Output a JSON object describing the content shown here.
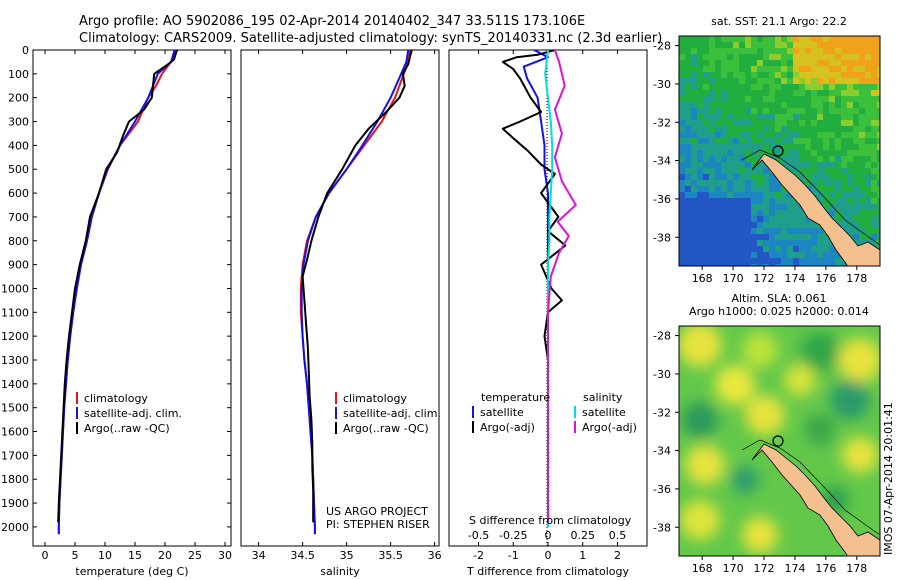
{
  "header": {
    "line1": "Argo profile: AO 5902086_195 02-Apr-2014 20140402_347 33.511S 173.106E",
    "line2": "Climatology: CARS2009. Satellite-adjusted climatology: synTS_20140331.nc (2.3d earlier)"
  },
  "colors": {
    "climatology": "#ee1111",
    "satellite": "#1111ee",
    "argo": "#000000",
    "salinity_satellite": "#00dddd",
    "salinity_argo": "#dd11dd",
    "land": "#f5c08f"
  },
  "depth_ticks": [
    "0",
    "100",
    "200",
    "300",
    "400",
    "500",
    "600",
    "700",
    "800",
    "900",
    "1000",
    "1100",
    "1200",
    "1300",
    "1400",
    "1500",
    "1600",
    "1700",
    "1800",
    "1900",
    "2000"
  ],
  "panels": {
    "temperature": {
      "xlabel": "temperature (deg C)",
      "ticks": [
        "0",
        "5",
        "10",
        "15",
        "20",
        "25",
        "30"
      ],
      "legend": [
        "climatology",
        "satellite-adj. clim.",
        "Argo(..raw -QC)"
      ]
    },
    "salinity": {
      "xlabel": "salinity",
      "ticks": [
        "34",
        "34.5",
        "35",
        "35.5",
        "36"
      ],
      "legend": [
        "climatology",
        "satellite-adj. clim.",
        "Argo(..raw -QC)"
      ],
      "credit1": "US ARGO PROJECT",
      "credit2": "PI: STEPHEN RISER"
    },
    "difference": {
      "xlabel": "T difference from climatology",
      "top_label": "S difference from climatology",
      "t_ticks": [
        "-2",
        "-1",
        "0",
        "1",
        "2"
      ],
      "s_ticks": [
        "-0.5",
        "-0.25",
        "0",
        "0.25",
        "0.5"
      ],
      "legend_temp_header": "temperature",
      "legend_sal_header": "salinity",
      "legend_temp": [
        "satellite",
        "Argo(-adj)"
      ],
      "legend_sal": [
        "satellite",
        "Argo(-adj)"
      ]
    }
  },
  "maps": {
    "sst": {
      "title": "sat. SST: 21.1  Argo: 22.2",
      "lat_ticks": [
        "-28",
        "-30",
        "-32",
        "-34",
        "-36",
        "-38"
      ],
      "lon_ticks": [
        "168",
        "170",
        "172",
        "174",
        "176",
        "178"
      ]
    },
    "sla": {
      "title1": "Altim. SLA: 0.061",
      "title2": "Argo h1000: 0.025 h2000: 0.014",
      "lat_ticks": [
        "-28",
        "-30",
        "-32",
        "-34",
        "-36",
        "-38"
      ],
      "lon_ticks": [
        "168",
        "170",
        "172",
        "174",
        "176",
        "178"
      ],
      "side_label": "IMOS 07-Apr-2014 20:01:41"
    }
  },
  "chart_data": [
    {
      "type": "line",
      "name": "temperature profile",
      "xlabel": "temperature (deg C)",
      "ylabel": "",
      "xlim": [
        -2,
        31
      ],
      "ylim": [
        2080,
        0
      ],
      "series": [
        {
          "name": "climatology",
          "color": "#ee1111",
          "points": [
            [
              22.0,
              0
            ],
            [
              21.0,
              50
            ],
            [
              19.5,
              100
            ],
            [
              18.5,
              150
            ],
            [
              17.2,
              200
            ],
            [
              15.5,
              300
            ],
            [
              12.5,
              400
            ],
            [
              10.5,
              500
            ],
            [
              9.0,
              600
            ],
            [
              7.8,
              700
            ],
            [
              7.0,
              800
            ],
            [
              6.0,
              900
            ],
            [
              5.3,
              1000
            ],
            [
              4.7,
              1100
            ],
            [
              4.2,
              1200
            ],
            [
              3.8,
              1300
            ],
            [
              3.5,
              1400
            ],
            [
              3.2,
              1500
            ],
            [
              3.0,
              1600
            ],
            [
              2.8,
              1700
            ],
            [
              2.6,
              1800
            ],
            [
              2.4,
              1900
            ],
            [
              2.3,
              2000
            ],
            [
              2.3,
              2030
            ]
          ]
        },
        {
          "name": "satellite-adj. clim.",
          "color": "#1111ee",
          "points": [
            [
              21.6,
              0
            ],
            [
              21.0,
              50
            ],
            [
              18.8,
              100
            ],
            [
              17.2,
              200
            ],
            [
              15.0,
              300
            ],
            [
              12.5,
              400
            ],
            [
              10.4,
              500
            ],
            [
              9.0,
              600
            ],
            [
              7.8,
              700
            ],
            [
              7.0,
              800
            ],
            [
              6.0,
              900
            ],
            [
              5.3,
              1000
            ],
            [
              4.7,
              1100
            ],
            [
              4.2,
              1200
            ],
            [
              3.8,
              1300
            ],
            [
              3.5,
              1400
            ],
            [
              3.2,
              1500
            ],
            [
              3.0,
              1600
            ],
            [
              2.8,
              1700
            ],
            [
              2.6,
              1800
            ],
            [
              2.4,
              1900
            ],
            [
              2.3,
              2000
            ],
            [
              2.3,
              2030
            ]
          ]
        },
        {
          "name": "Argo(..raw -QC)",
          "color": "#000000",
          "points": [
            [
              22.0,
              0
            ],
            [
              21.5,
              40
            ],
            [
              20.5,
              60
            ],
            [
              18.2,
              100
            ],
            [
              17.8,
              200
            ],
            [
              16.5,
              250
            ],
            [
              14.0,
              300
            ],
            [
              13.0,
              360
            ],
            [
              12.0,
              430
            ],
            [
              10.2,
              500
            ],
            [
              9.0,
              600
            ],
            [
              7.5,
              700
            ],
            [
              6.8,
              800
            ],
            [
              5.8,
              900
            ],
            [
              5.0,
              1000
            ],
            [
              4.5,
              1100
            ],
            [
              4.0,
              1200
            ],
            [
              3.6,
              1300
            ],
            [
              3.3,
              1400
            ],
            [
              3.1,
              1500
            ],
            [
              2.9,
              1600
            ],
            [
              2.7,
              1700
            ],
            [
              2.5,
              1800
            ],
            [
              2.3,
              1900
            ],
            [
              2.2,
              1980
            ]
          ]
        }
      ]
    },
    {
      "type": "line",
      "name": "salinity profile",
      "xlabel": "salinity",
      "ylabel": "",
      "xlim": [
        33.8,
        36.05
      ],
      "ylim": [
        2080,
        0
      ],
      "series": [
        {
          "name": "climatology",
          "color": "#ee1111",
          "points": [
            [
              35.72,
              0
            ],
            [
              35.7,
              50
            ],
            [
              35.65,
              100
            ],
            [
              35.55,
              200
            ],
            [
              35.4,
              300
            ],
            [
              35.2,
              400
            ],
            [
              35.0,
              500
            ],
            [
              34.8,
              600
            ],
            [
              34.65,
              700
            ],
            [
              34.55,
              800
            ],
            [
              34.5,
              900
            ],
            [
              34.48,
              1000
            ],
            [
              34.48,
              1100
            ],
            [
              34.5,
              1200
            ],
            [
              34.52,
              1300
            ],
            [
              34.55,
              1400
            ],
            [
              34.57,
              1500
            ],
            [
              34.59,
              1600
            ],
            [
              34.61,
              1700
            ],
            [
              34.62,
              1800
            ],
            [
              34.63,
              1900
            ],
            [
              34.64,
              2000
            ],
            [
              34.64,
              2030
            ]
          ]
        },
        {
          "name": "satellite-adj. clim.",
          "color": "#1111ee",
          "points": [
            [
              35.7,
              0
            ],
            [
              35.68,
              50
            ],
            [
              35.62,
              100
            ],
            [
              35.5,
              200
            ],
            [
              35.35,
              300
            ],
            [
              35.18,
              400
            ],
            [
              35.0,
              500
            ],
            [
              34.8,
              600
            ],
            [
              34.65,
              700
            ],
            [
              34.56,
              800
            ],
            [
              34.51,
              900
            ],
            [
              34.49,
              1000
            ],
            [
              34.49,
              1100
            ],
            [
              34.5,
              1200
            ],
            [
              34.52,
              1300
            ],
            [
              34.55,
              1400
            ],
            [
              34.57,
              1500
            ],
            [
              34.59,
              1600
            ],
            [
              34.61,
              1700
            ],
            [
              34.62,
              1800
            ],
            [
              34.63,
              1900
            ],
            [
              34.64,
              2000
            ],
            [
              34.64,
              2030
            ]
          ]
        },
        {
          "name": "Argo(..raw -QC)",
          "color": "#000000",
          "points": [
            [
              35.74,
              0
            ],
            [
              35.7,
              60
            ],
            [
              35.64,
              100
            ],
            [
              35.66,
              150
            ],
            [
              35.6,
              200
            ],
            [
              35.45,
              260
            ],
            [
              35.25,
              330
            ],
            [
              35.1,
              400
            ],
            [
              34.95,
              500
            ],
            [
              34.78,
              600
            ],
            [
              34.68,
              700
            ],
            [
              34.6,
              800
            ],
            [
              34.55,
              880
            ],
            [
              34.5,
              950
            ],
            [
              34.52,
              1050
            ],
            [
              34.54,
              1150
            ],
            [
              34.56,
              1250
            ],
            [
              34.57,
              1350
            ],
            [
              34.58,
              1450
            ],
            [
              34.6,
              1550
            ],
            [
              34.61,
              1650
            ],
            [
              34.61,
              1750
            ],
            [
              34.62,
              1850
            ],
            [
              34.62,
              1980
            ]
          ]
        }
      ]
    },
    {
      "type": "line",
      "name": "difference from climatology",
      "xlabel": "T difference from climatology",
      "x2label": "S difference from climatology",
      "ylabel": "",
      "xlim": [
        -2.85,
        2.85
      ],
      "x2lim": [
        -0.7125,
        0.7125
      ],
      "ylim": [
        2080,
        0
      ],
      "series": [
        {
          "name": "temperature satellite",
          "axis": "T",
          "color": "#1111ee",
          "points": [
            [
              -0.4,
              0
            ],
            [
              0.0,
              30
            ],
            [
              -0.7,
              70
            ],
            [
              -0.6,
              120
            ],
            [
              -0.3,
              200
            ],
            [
              -0.2,
              300
            ],
            [
              -0.1,
              400
            ],
            [
              -0.1,
              500
            ],
            [
              0.0,
              600
            ],
            [
              0.0,
              700
            ],
            [
              0.0,
              800
            ],
            [
              0.0,
              900
            ],
            [
              0.0,
              1000
            ],
            [
              0.0,
              1100
            ],
            [
              0.0,
              1200
            ],
            [
              0.0,
              1300
            ],
            [
              0.0,
              1400
            ],
            [
              0.0,
              1500
            ],
            [
              0.0,
              1600
            ],
            [
              0.0,
              1700
            ],
            [
              0.0,
              1800
            ],
            [
              0.0,
              1900
            ],
            [
              0.0,
              2000
            ]
          ]
        },
        {
          "name": "temperature Argo(-adj)",
          "axis": "T",
          "color": "#000000",
          "points": [
            [
              0.2,
              0
            ],
            [
              -0.3,
              20
            ],
            [
              -0.9,
              30
            ],
            [
              -1.3,
              50
            ],
            [
              -1.0,
              80
            ],
            [
              -0.8,
              120
            ],
            [
              -0.5,
              200
            ],
            [
              -0.2,
              260
            ],
            [
              -0.8,
              300
            ],
            [
              -1.3,
              330
            ],
            [
              -1.0,
              370
            ],
            [
              -0.6,
              420
            ],
            [
              -0.2,
              480
            ],
            [
              0.2,
              520
            ],
            [
              -0.2,
              600
            ],
            [
              0.3,
              700
            ],
            [
              0.0,
              760
            ],
            [
              0.5,
              820
            ],
            [
              -0.2,
              900
            ],
            [
              0.1,
              1000
            ],
            [
              0.4,
              1050
            ],
            [
              0.0,
              1100
            ],
            [
              -0.1,
              1200
            ],
            [
              0.0,
              1300
            ],
            [
              0.0,
              1500
            ],
            [
              0.0,
              1700
            ],
            [
              0.0,
              1900
            ],
            [
              0.0,
              1980
            ]
          ]
        },
        {
          "name": "salinity satellite",
          "axis": "S",
          "color": "#00dddd",
          "points": [
            [
              0.0,
              0
            ],
            [
              -0.02,
              100
            ],
            [
              0.0,
              200
            ],
            [
              0.02,
              300
            ],
            [
              0.03,
              400
            ],
            [
              0.03,
              500
            ],
            [
              0.02,
              600
            ],
            [
              0.01,
              700
            ],
            [
              0.01,
              800
            ],
            [
              0.0,
              900
            ],
            [
              0.0,
              1200
            ],
            [
              0.0,
              1600
            ],
            [
              0.0,
              2000
            ]
          ]
        },
        {
          "name": "salinity Argo(-adj)",
          "axis": "S",
          "color": "#dd11dd",
          "points": [
            [
              0.05,
              0
            ],
            [
              0.08,
              50
            ],
            [
              0.12,
              150
            ],
            [
              0.05,
              250
            ],
            [
              0.1,
              350
            ],
            [
              0.05,
              450
            ],
            [
              0.1,
              550
            ],
            [
              0.2,
              650
            ],
            [
              0.07,
              720
            ],
            [
              0.15,
              780
            ],
            [
              0.08,
              850
            ],
            [
              0.02,
              950
            ],
            [
              0.0,
              1100
            ],
            [
              0.0,
              1300
            ],
            [
              0.0,
              1500
            ],
            [
              0.0,
              1700
            ],
            [
              0.0,
              1900
            ],
            [
              0.0,
              1980
            ]
          ]
        }
      ]
    }
  ]
}
